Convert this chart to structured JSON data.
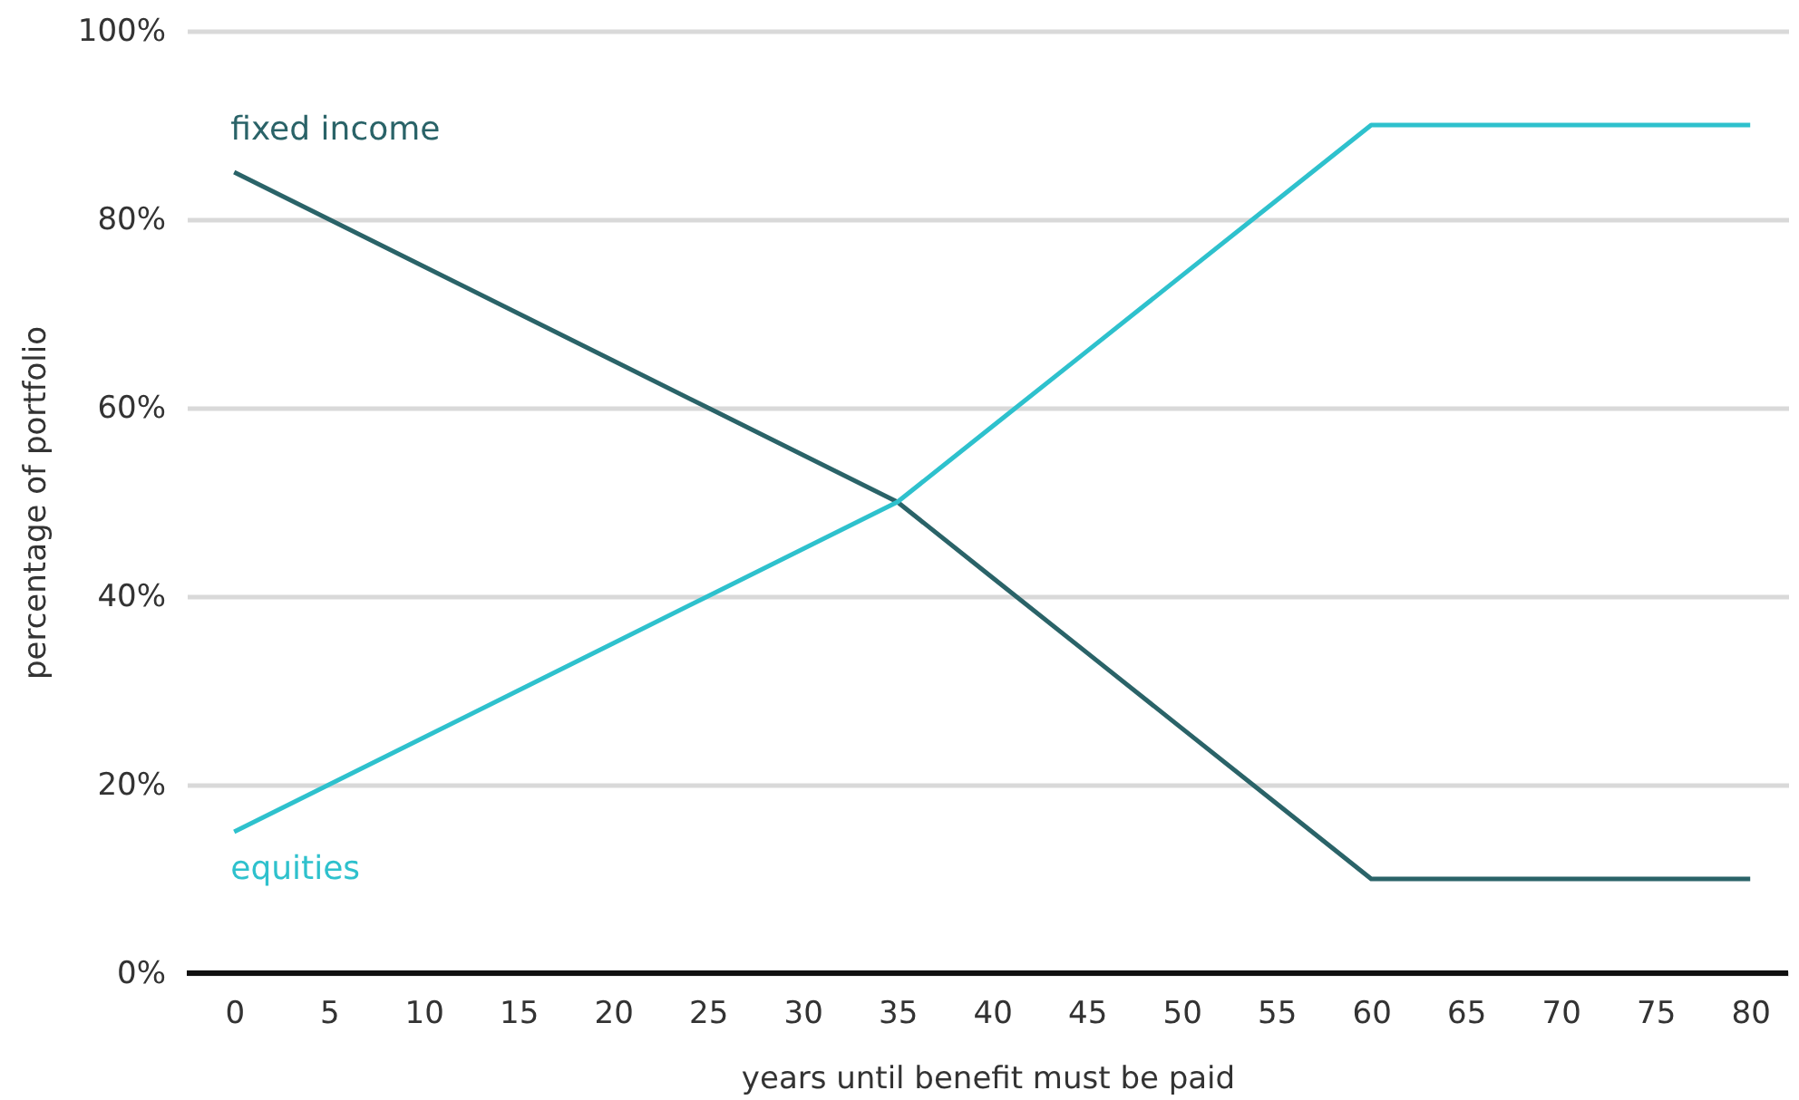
{
  "chart_data": {
    "type": "line",
    "xlabel": "years until benefit must be paid",
    "ylabel": "percentage of portfolio",
    "x": [
      0,
      5,
      10,
      15,
      20,
      25,
      30,
      35,
      40,
      45,
      50,
      55,
      60,
      65,
      70,
      75,
      80
    ],
    "series": [
      {
        "name": "fixed income",
        "color": "#2a6368",
        "values": [
          85,
          80,
          75,
          70,
          65,
          60,
          55,
          50,
          42,
          34,
          26,
          18,
          10,
          10,
          10,
          10,
          10
        ]
      },
      {
        "name": "equities",
        "color": "#2ec1cd",
        "values": [
          15,
          20,
          25,
          30,
          35,
          40,
          45,
          50,
          58,
          66,
          74,
          82,
          90,
          90,
          90,
          90,
          90
        ]
      }
    ],
    "xlim": [
      -2.5,
      82
    ],
    "xticks": [
      0,
      5,
      10,
      15,
      20,
      25,
      30,
      35,
      40,
      45,
      50,
      55,
      60,
      65,
      70,
      75,
      80
    ],
    "ylim": [
      0,
      100
    ],
    "yticks": [
      {
        "value": 0,
        "label": "0%"
      },
      {
        "value": 20,
        "label": "20%"
      },
      {
        "value": 40,
        "label": "40%"
      },
      {
        "value": 60,
        "label": "60%"
      },
      {
        "value": 80,
        "label": "80%"
      },
      {
        "value": 100,
        "label": "100%"
      }
    ],
    "grid": "y",
    "legend": false,
    "marker": "none",
    "line_style": "solid"
  }
}
